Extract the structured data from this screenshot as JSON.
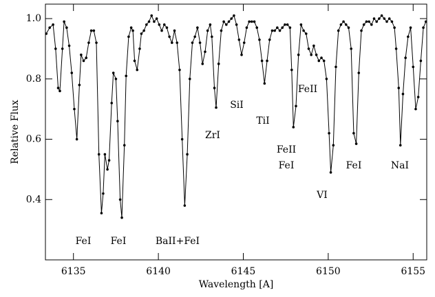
{
  "chart_data": {
    "type": "line",
    "x_label": "Wavelength [A]",
    "y_label": "Relative Flux",
    "x": [
      6133.4,
      6133.6,
      6133.8,
      6133.95,
      6134.1,
      6134.2,
      6134.35,
      6134.45,
      6134.6,
      6134.75,
      6134.9,
      6135.05,
      6135.2,
      6135.35,
      6135.45,
      6135.6,
      6135.75,
      6135.9,
      6136.05,
      6136.2,
      6136.35,
      6136.5,
      6136.65,
      6136.75,
      6136.85,
      6137.0,
      6137.1,
      6137.25,
      6137.35,
      6137.5,
      6137.6,
      6137.75,
      6137.85,
      6138.0,
      6138.1,
      6138.25,
      6138.4,
      6138.5,
      6138.6,
      6138.75,
      6138.9,
      6139.0,
      6139.15,
      6139.3,
      6139.45,
      6139.6,
      6139.75,
      6139.9,
      6140.05,
      6140.2,
      6140.35,
      6140.5,
      6140.65,
      6140.8,
      6140.95,
      6141.1,
      6141.25,
      6141.4,
      6141.55,
      6141.7,
      6141.85,
      6142.0,
      6142.15,
      6142.3,
      6142.45,
      6142.6,
      6142.75,
      6142.9,
      6143.05,
      6143.15,
      6143.3,
      6143.4,
      6143.55,
      6143.7,
      6143.85,
      6144.0,
      6144.15,
      6144.3,
      6144.45,
      6144.6,
      6144.75,
      6144.9,
      6145.05,
      6145.2,
      6145.35,
      6145.5,
      6145.65,
      6145.8,
      6145.95,
      6146.1,
      6146.25,
      6146.4,
      6146.55,
      6146.7,
      6146.85,
      6147.0,
      6147.15,
      6147.3,
      6147.45,
      6147.6,
      6147.75,
      6147.85,
      6147.95,
      6148.1,
      6148.25,
      6148.4,
      6148.55,
      6148.7,
      6148.85,
      6149.0,
      6149.15,
      6149.3,
      6149.45,
      6149.6,
      6149.75,
      6149.9,
      6150.05,
      6150.15,
      6150.3,
      6150.45,
      6150.6,
      6150.75,
      6150.9,
      6151.05,
      6151.2,
      6151.35,
      6151.5,
      6151.65,
      6151.8,
      6151.95,
      6152.1,
      6152.25,
      6152.4,
      6152.55,
      6152.7,
      6152.85,
      6153.0,
      6153.15,
      6153.3,
      6153.45,
      6153.6,
      6153.75,
      6153.9,
      6154.0,
      6154.15,
      6154.25,
      6154.4,
      6154.55,
      6154.7,
      6154.85,
      6155.0,
      6155.15,
      6155.3,
      6155.45,
      6155.6,
      6155.75
    ],
    "values": [
      0.95,
      0.97,
      0.98,
      0.9,
      0.77,
      0.76,
      0.9,
      0.99,
      0.97,
      0.91,
      0.82,
      0.7,
      0.6,
      0.78,
      0.88,
      0.86,
      0.87,
      0.92,
      0.96,
      0.96,
      0.92,
      0.55,
      0.355,
      0.42,
      0.55,
      0.5,
      0.53,
      0.72,
      0.82,
      0.8,
      0.66,
      0.4,
      0.34,
      0.58,
      0.81,
      0.94,
      0.97,
      0.96,
      0.86,
      0.83,
      0.9,
      0.95,
      0.96,
      0.98,
      0.99,
      1.01,
      0.99,
      1.0,
      0.98,
      0.96,
      0.98,
      0.97,
      0.94,
      0.92,
      0.96,
      0.92,
      0.83,
      0.6,
      0.38,
      0.55,
      0.8,
      0.92,
      0.94,
      0.97,
      0.92,
      0.85,
      0.89,
      0.96,
      0.98,
      0.94,
      0.77,
      0.705,
      0.85,
      0.96,
      0.99,
      0.98,
      0.99,
      1.0,
      1.01,
      0.98,
      0.93,
      0.88,
      0.92,
      0.97,
      0.99,
      0.99,
      0.99,
      0.97,
      0.93,
      0.86,
      0.785,
      0.86,
      0.93,
      0.96,
      0.96,
      0.97,
      0.96,
      0.97,
      0.98,
      0.98,
      0.97,
      0.83,
      0.64,
      0.71,
      0.88,
      0.98,
      0.96,
      0.95,
      0.9,
      0.88,
      0.91,
      0.88,
      0.86,
      0.87,
      0.86,
      0.8,
      0.62,
      0.49,
      0.58,
      0.84,
      0.96,
      0.98,
      0.99,
      0.98,
      0.97,
      0.9,
      0.62,
      0.585,
      0.82,
      0.96,
      0.98,
      0.99,
      0.99,
      0.98,
      1.0,
      0.99,
      1.0,
      1.01,
      1.0,
      0.99,
      1.0,
      0.99,
      0.97,
      0.9,
      0.77,
      0.58,
      0.75,
      0.87,
      0.94,
      0.97,
      0.84,
      0.7,
      0.74,
      0.86,
      0.97,
      0.99
    ],
    "color": "#000000",
    "xlim": [
      6133.35,
      6155.8
    ],
    "ylim": [
      0.2,
      1.048
    ],
    "xticks": [
      6135,
      6140,
      6145,
      6150,
      6155
    ],
    "yticks": [
      {
        "value": 0.4,
        "label": "0.4"
      },
      {
        "value": 0.6,
        "label": "0.6"
      },
      {
        "value": 0.8,
        "label": "0.8"
      },
      {
        "value": 1.0,
        "label": "1.0"
      }
    ],
    "annotations": [
      "FeI",
      "FeI",
      "BaII+FeI",
      "ZrI",
      "SiI",
      "TiI",
      "FeII",
      "FeII",
      "FeI",
      "VI",
      "FeI",
      "NaI"
    ]
  }
}
